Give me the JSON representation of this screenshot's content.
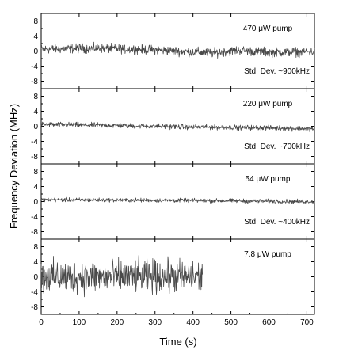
{
  "chart_data": {
    "type": "line",
    "ylabel": "Frequency Deviation (MHz)",
    "xlabel": "Time (s)",
    "xlim": [
      0,
      720
    ],
    "x_ticks": [
      "0",
      "100",
      "200",
      "300",
      "400",
      "500",
      "600",
      "700"
    ],
    "y_ticks": [
      "8",
      "4",
      "0",
      "-4",
      "-8"
    ],
    "ylim": [
      -10,
      10
    ],
    "color": "#4a4a4a",
    "panels": [
      {
        "label": "470 μW pump",
        "annotation": "Std. Dev. ~900kHz",
        "x_range": [
          0,
          720
        ],
        "mean_trend": [
          [
            0,
            0.5
          ],
          [
            150,
            0.8
          ],
          [
            300,
            0.3
          ],
          [
            450,
            -0.5
          ],
          [
            520,
            0.2
          ],
          [
            600,
            -0.3
          ],
          [
            720,
            -0.2
          ]
        ],
        "amplitude": 1.8
      },
      {
        "label": "220 μW pump",
        "annotation": "Std. Dev. ~700kHz",
        "x_range": [
          0,
          720
        ],
        "mean_trend": [
          [
            0,
            0.5
          ],
          [
            200,
            0.2
          ],
          [
            400,
            -0.2
          ],
          [
            600,
            -0.4
          ],
          [
            720,
            -0.7
          ]
        ],
        "amplitude": 1.0
      },
      {
        "label": "54 μW pump",
        "annotation": "Std. Dev. ~400kHz",
        "x_range": [
          0,
          720
        ],
        "mean_trend": [
          [
            0,
            0.5
          ],
          [
            360,
            0.3
          ],
          [
            720,
            0.0
          ]
        ],
        "amplitude": 0.8
      },
      {
        "label": "7.8 μW pump",
        "annotation": "",
        "x_range": [
          0,
          425
        ],
        "mean_trend": [
          [
            0,
            0.0
          ],
          [
            425,
            0.0
          ]
        ],
        "amplitude": 6.5
      }
    ]
  }
}
